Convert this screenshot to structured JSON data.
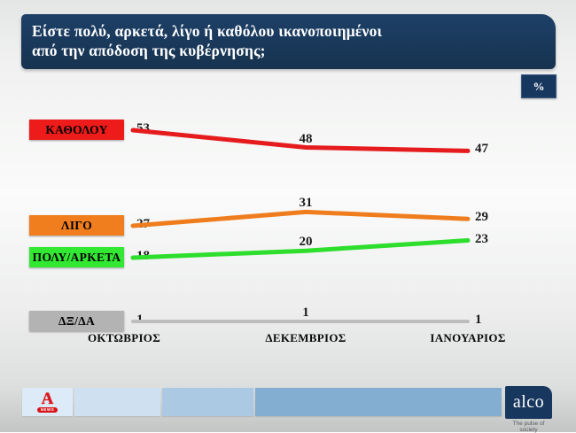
{
  "header": {
    "question": "Είστε πολύ, αρκετά, λίγο ή καθόλου ικανοποιημένοι\nαπό την απόδοση της κυβέρνησης;",
    "unit_badge": "%"
  },
  "chart_data": {
    "type": "line",
    "title": "Είστε πολύ, αρκετά, λίγο ή καθόλου ικανοποιημένοι από την απόδοση της κυβέρνησης;",
    "unit": "%",
    "categories": [
      "ΟΚΤΩΒΡΙΟΣ",
      "ΔΕΚΕΜΒΡΙΟΣ",
      "ΙΑΝΟΥΑΡΙΟΣ"
    ],
    "series": [
      {
        "name": "ΚΑΘΟΛΟΥ",
        "values": [
          53,
          48,
          47
        ],
        "color": "#e51b1e",
        "label_bg": "#ee1b1b"
      },
      {
        "name": "ΛΙΓΟ",
        "values": [
          27,
          31,
          29
        ],
        "color": "#ef7d1e",
        "label_bg": "#f07d1e"
      },
      {
        "name": "ΠΟΛΥ/ΑΡΚΕΤΑ",
        "values": [
          18,
          20,
          23
        ],
        "color": "#2dde2d",
        "label_bg": "#33e833"
      },
      {
        "name": "ΔΞ/ΔΑ",
        "values": [
          1,
          1,
          1
        ],
        "color": "#bdbdbd",
        "label_bg": "#b3b3b3"
      }
    ],
    "legend_position": "left",
    "grid": false,
    "data_labels": true
  },
  "footer": {
    "alpha_logo": {
      "letter": "A",
      "news_label": "NEWS"
    },
    "alco": {
      "name": "alco",
      "tagline": "The pulse of society"
    }
  }
}
